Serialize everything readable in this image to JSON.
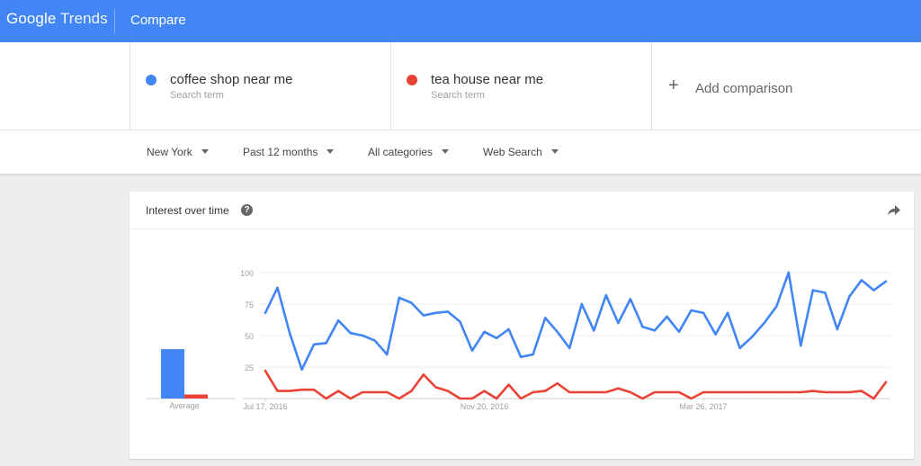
{
  "header": {
    "logo_google": "Google",
    "logo_trends": "Trends",
    "page_title": "Compare"
  },
  "terms": [
    {
      "name": "coffee shop near me",
      "sub": "Search term",
      "color": "#4285f4"
    },
    {
      "name": "tea house near me",
      "sub": "Search term",
      "color": "#ea4335"
    }
  ],
  "add_comparison": {
    "icon": "plus-icon",
    "label": "Add comparison"
  },
  "filters": [
    {
      "label": "New York"
    },
    {
      "label": "Past 12 months"
    },
    {
      "label": "All categories"
    },
    {
      "label": "Web Search"
    }
  ],
  "card": {
    "title": "Interest over time",
    "help_icon": "question-circle-icon",
    "share_icon": "share-arrow-icon"
  },
  "chart_data": {
    "type": "line",
    "ylim": [
      0,
      100
    ],
    "yticks": [
      25,
      50,
      75,
      100
    ],
    "xtick_labels": [
      "Jul 17, 2016",
      "Nov 20, 2016",
      "Mar 26, 2017"
    ],
    "xtick_positions": [
      0,
      18,
      36
    ],
    "average_label": "Average",
    "series": [
      {
        "name": "coffee shop near me",
        "color": "#4285f4",
        "average": 61,
        "values": [
          68,
          88,
          52,
          23,
          43,
          44,
          62,
          52,
          50,
          46,
          35,
          80,
          76,
          66,
          68,
          69,
          61,
          38,
          53,
          48,
          55,
          33,
          35,
          64,
          53,
          40,
          75,
          54,
          82,
          60,
          79,
          57,
          54,
          65,
          53,
          70,
          68,
          51,
          68,
          40,
          49,
          60,
          73,
          100,
          42,
          86,
          84,
          55,
          81,
          94,
          86,
          93
        ]
      },
      {
        "name": "tea house near me",
        "color": "#ea4335",
        "average": 5,
        "values": [
          22,
          6,
          6,
          7,
          7,
          0,
          6,
          0,
          5,
          5,
          5,
          0,
          6,
          19,
          9,
          6,
          0,
          0,
          6,
          0,
          11,
          0,
          5,
          6,
          12,
          5,
          5,
          5,
          5,
          8,
          5,
          0,
          5,
          5,
          5,
          0,
          5,
          5,
          5,
          5,
          5,
          5,
          5,
          5,
          5,
          6,
          5,
          5,
          5,
          6,
          0,
          13
        ]
      }
    ]
  }
}
